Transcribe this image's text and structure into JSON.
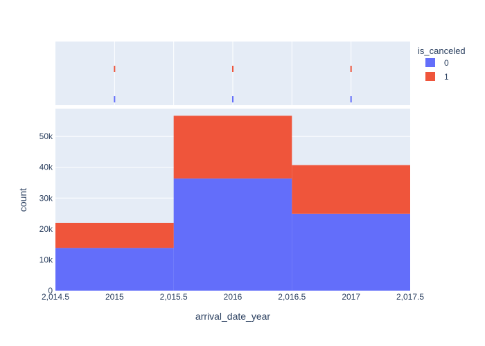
{
  "chart_data": {
    "type": "bar",
    "barmode": "stack",
    "categories": [
      "2015",
      "2016",
      "2017"
    ],
    "bin_edges": [
      2014.5,
      2015.5,
      2016.5,
      2017.5
    ],
    "x_tick_labels": [
      "2,014.5",
      "2015",
      "2,015.5",
      "2016",
      "2,016.5",
      "2017",
      "2,017.5"
    ],
    "x_tick_values": [
      2014.5,
      2015,
      2015.5,
      2016,
      2016.5,
      2017,
      2017.5
    ],
    "series": [
      {
        "name": "0",
        "values": [
          13850,
          36370,
          24940
        ],
        "color": "#636efa"
      },
      {
        "name": "1",
        "values": [
          8140,
          20330,
          15750
        ],
        "color": "#ef553b"
      }
    ],
    "xlabel": "arrival_date_year",
    "ylabel": "count",
    "ylim": [
      0,
      59000
    ],
    "y_tick_values": [
      0,
      10000,
      20000,
      30000,
      40000,
      50000
    ],
    "y_tick_labels": [
      "0",
      "10k",
      "20k",
      "30k",
      "40k",
      "50k"
    ],
    "xlim": [
      2014.5,
      2017.5
    ],
    "legend": {
      "title": "is_canceled",
      "placement": "top-right",
      "entries": [
        "0",
        "1"
      ]
    },
    "marginal": "rug",
    "grid": true,
    "colors": {
      "plot_bg": "#e5ecf6",
      "grid": "#ffffff",
      "text": "#2a3f5f"
    }
  }
}
